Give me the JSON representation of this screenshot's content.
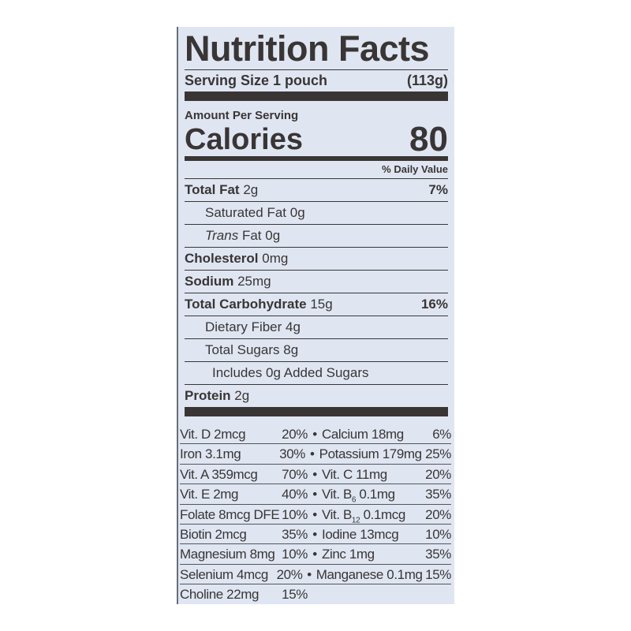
{
  "title": "Nutrition Facts",
  "serving": {
    "label": "Serving Size 1 pouch",
    "weight": "(113g)"
  },
  "amount_per_serving": "Amount Per Serving",
  "calories": {
    "label": "Calories",
    "value": "80"
  },
  "daily_value_header": "% Daily Value",
  "nutrients": [
    {
      "name": "Total Fat",
      "amount": "2g",
      "dv": "7%"
    },
    {
      "name": "Saturated Fat",
      "amount": "0g",
      "dv": ""
    },
    {
      "name": "Trans",
      "name_rest": "Fat",
      "amount": "0g",
      "dv": ""
    },
    {
      "name": "Cholesterol",
      "amount": "0mg",
      "dv": ""
    },
    {
      "name": "Sodium",
      "amount": "25mg",
      "dv": ""
    },
    {
      "name": "Total Carbohydrate",
      "amount": "15g",
      "dv": "16%"
    },
    {
      "name": "Dietary Fiber",
      "amount": "4g",
      "dv": ""
    },
    {
      "name": "Total Sugars",
      "amount": "8g",
      "dv": ""
    },
    {
      "name": "Includes 0g Added Sugars",
      "amount": "",
      "dv": ""
    },
    {
      "name": "Protein",
      "amount": "2g",
      "dv": ""
    }
  ],
  "vitamins": [
    {
      "left": "Vit. D 2mcg",
      "left_dv": "20%",
      "right": "Calcium 18mg",
      "right_dv": "6%"
    },
    {
      "left": "Iron 3.1mg",
      "left_dv": "30%",
      "right": "Potassium 179mg",
      "right_dv": "25%"
    },
    {
      "left": "Vit. A 359mcg",
      "left_dv": "70%",
      "right": "Vit. C 11mg",
      "right_dv": "20%"
    },
    {
      "left": "Vit. E 2mg",
      "left_dv": "40%",
      "right_pre": "Vit. B",
      "right_sub": "6",
      "right_post": " 0.1mg",
      "right_dv": "35%"
    },
    {
      "left": "Folate 8mcg DFE",
      "left_dv": "10%",
      "right_pre": "Vit. B",
      "right_sub": "12",
      "right_post": " 0.1mcg",
      "right_dv": "20%"
    },
    {
      "left": "Biotin 2mcg",
      "left_dv": "35%",
      "right": "Iodine 13mcg",
      "right_dv": "10%"
    },
    {
      "left": "Magnesium 8mg",
      "left_dv": "10%",
      "right": "Zinc 1mg",
      "right_dv": "35%"
    },
    {
      "left": "Selenium 4mcg",
      "left_dv": "20%",
      "right": "Manganese 0.1mg",
      "right_dv": "15%"
    },
    {
      "left": "Choline 22mg",
      "left_dv": "15%"
    }
  ],
  "bullet": "•"
}
